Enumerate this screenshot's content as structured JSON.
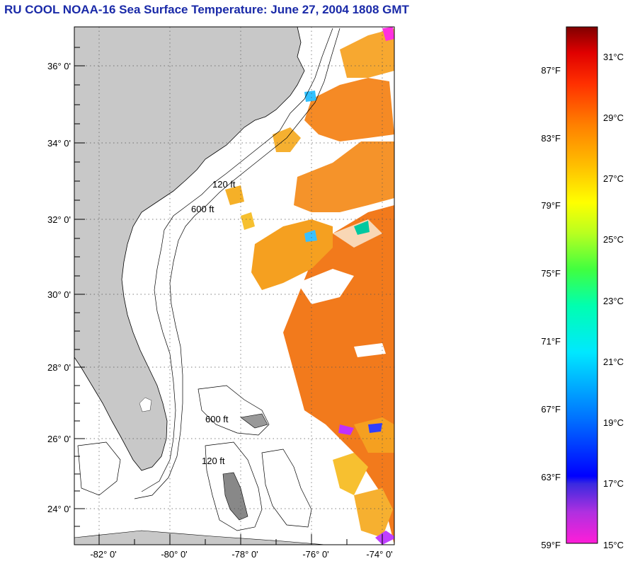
{
  "title": "RU COOL  NOAA-16  Sea Surface Temperature:  June 27, 2004 1808 GMT",
  "latitude_labels": [
    "36° 0'",
    "34° 0'",
    "32° 0'",
    "30° 0'",
    "28° 0'",
    "26° 0'",
    "24° 0'"
  ],
  "longitude_labels": [
    "-82° 0'",
    "-80° 0'",
    "-78° 0'",
    "-76° 0'",
    "-74° 0'"
  ],
  "contour_labels": [
    "120 ft",
    "600 ft"
  ],
  "colorbar": {
    "fahrenheit": [
      "87°F",
      "83°F",
      "79°F",
      "75°F",
      "71°F",
      "67°F",
      "63°F",
      "59°F"
    ],
    "celsius": [
      "31°C",
      "29°C",
      "27°C",
      "25°C",
      "23°C",
      "21°C",
      "19°C",
      "17°C",
      "15°C"
    ]
  },
  "colors": {
    "title": "#1a2aa8",
    "land": "#c8c8c8",
    "sst_warm": "#f27a1c",
    "sst_mid": "#f5a020"
  }
}
